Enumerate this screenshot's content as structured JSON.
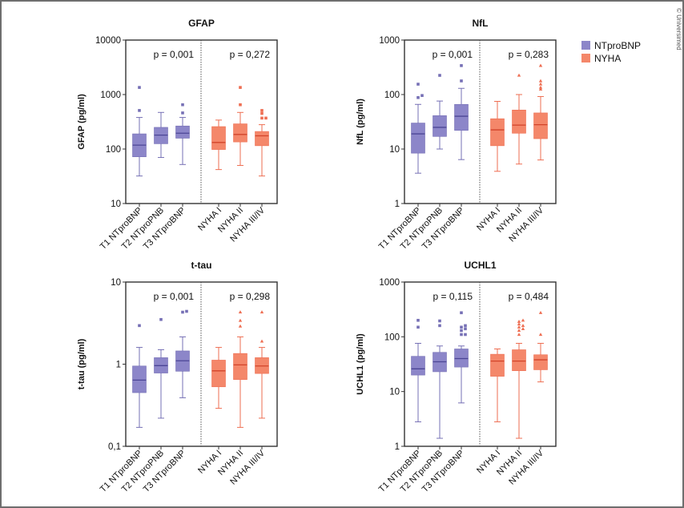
{
  "legend": {
    "items": [
      {
        "label": "NTproBNP",
        "color": "#8c86c9"
      },
      {
        "label": "NYHA",
        "color": "#f4876a"
      }
    ]
  },
  "copyright": "© Universimed",
  "colors": {
    "ntprobnp_fill": "#8c86c9",
    "ntprobnp_line": "#7670b5",
    "ntprobnp_median": "#4c4696",
    "nyha_fill": "#f4876a",
    "nyha_line": "#ee6e52",
    "nyha_median": "#d2442a",
    "axis": "#333333",
    "divider": "#555555"
  },
  "chart_data": [
    {
      "type": "box",
      "title": "GFAP",
      "ylabel": "GFAP (pg/ml)",
      "yscale": "log",
      "ylim": [
        10,
        10000
      ],
      "yticks": [
        10,
        100,
        1000,
        10000
      ],
      "ytick_labels": [
        "10",
        "100",
        "1000",
        "10000"
      ],
      "categories": [
        "T1 NTproBNP",
        "T2 NTproPNB",
        "T3 NTproBNP",
        "NYHA I",
        "NYHA II",
        "NYHA III/IV"
      ],
      "groups": [
        "NTproBNP",
        "NTproBNP",
        "NTproBNP",
        "NYHA",
        "NYHA",
        "NYHA"
      ],
      "pvalues": [
        "p = 0,001",
        "p = 0,272"
      ],
      "boxes": [
        {
          "min": 32,
          "q1": 72,
          "median": 118,
          "q3": 190,
          "max": 380,
          "outliers": [
            510,
            1350
          ],
          "marker": "square"
        },
        {
          "min": 70,
          "q1": 125,
          "median": 180,
          "q3": 250,
          "max": 470,
          "outliers": [],
          "marker": "square"
        },
        {
          "min": 52,
          "q1": 158,
          "median": 195,
          "q3": 265,
          "max": 380,
          "outliers": [
            460,
            650
          ],
          "marker": "square"
        },
        {
          "min": 42,
          "q1": 98,
          "median": 132,
          "q3": 258,
          "max": 340,
          "outliers": [],
          "marker": "square"
        },
        {
          "min": 50,
          "q1": 135,
          "median": 185,
          "q3": 290,
          "max": 470,
          "outliers": [
            650,
            1350
          ],
          "marker": "square"
        },
        {
          "min": 32,
          "q1": 115,
          "median": 175,
          "q3": 210,
          "max": 280,
          "outliers": [
            370,
            370,
            450,
            510
          ],
          "marker": "square"
        }
      ]
    },
    {
      "type": "box",
      "title": "NfL",
      "ylabel": "NfL (pg/ml)",
      "yscale": "log",
      "ylim": [
        1,
        1000
      ],
      "yticks": [
        1,
        10,
        100,
        1000
      ],
      "ytick_labels": [
        "1",
        "10",
        "100",
        "1000"
      ],
      "categories": [
        "T1 NTproBNP",
        "T2 NTproPNB",
        "T3 NTproBNP",
        "NYHA I",
        "NYHA II",
        "NYHA III/IV"
      ],
      "groups": [
        "NTproBNP",
        "NTproBNP",
        "NTproBNP",
        "NYHA",
        "NYHA",
        "NYHA"
      ],
      "pvalues": [
        "p = 0,001",
        "p = 0,283"
      ],
      "boxes": [
        {
          "min": 3.6,
          "q1": 8.4,
          "median": 19,
          "q3": 30,
          "max": 66,
          "outliers": [
            88,
            96,
            155
          ],
          "marker": "square"
        },
        {
          "min": 10,
          "q1": 17,
          "median": 25,
          "q3": 41,
          "max": 76,
          "outliers": [
            225
          ],
          "marker": "square"
        },
        {
          "min": 6.4,
          "q1": 22,
          "median": 40,
          "q3": 66,
          "max": 130,
          "outliers": [
            178,
            340
          ],
          "marker": "square"
        },
        {
          "min": 3.9,
          "q1": 11.5,
          "median": 22.5,
          "q3": 36,
          "max": 75,
          "outliers": [],
          "marker": "triangle"
        },
        {
          "min": 5.3,
          "q1": 19.5,
          "median": 27.5,
          "q3": 52,
          "max": 100,
          "outliers": [
            225
          ],
          "marker": "triangle"
        },
        {
          "min": 6.3,
          "q1": 15.5,
          "median": 28,
          "q3": 46,
          "max": 92,
          "outliers": [
            125,
            135,
            155,
            178,
            340
          ],
          "marker": "triangle"
        }
      ]
    },
    {
      "type": "box",
      "title": "t-tau",
      "ylabel": "t-tau (pg/ml)",
      "yscale": "log",
      "ylim": [
        0.1,
        10
      ],
      "yticks": [
        0.1,
        1,
        10
      ],
      "ytick_labels": [
        "0,1",
        "1",
        "10"
      ],
      "categories": [
        "T1 NTproBNP",
        "T2 NTproPNB",
        "T3 NTproBNP",
        "NYHA I",
        "NYHA II",
        "NYHA III/IV"
      ],
      "groups": [
        "NTproBNP",
        "NTproBNP",
        "NTproBNP",
        "NYHA",
        "NYHA",
        "NYHA"
      ],
      "pvalues": [
        "p = 0,001",
        "p = 0,298"
      ],
      "boxes": [
        {
          "min": 0.17,
          "q1": 0.45,
          "median": 0.64,
          "q3": 0.95,
          "max": 1.6,
          "outliers": [
            2.95
          ],
          "marker": "square"
        },
        {
          "min": 0.22,
          "q1": 0.78,
          "median": 0.96,
          "q3": 1.2,
          "max": 1.5,
          "outliers": [
            3.5
          ],
          "marker": "square"
        },
        {
          "min": 0.39,
          "q1": 0.82,
          "median": 1.1,
          "q3": 1.45,
          "max": 2.15,
          "outliers": [
            4.3,
            4.4
          ],
          "marker": "square"
        },
        {
          "min": 0.29,
          "q1": 0.53,
          "median": 0.83,
          "q3": 1.12,
          "max": 1.6,
          "outliers": [],
          "marker": "triangle"
        },
        {
          "min": 0.17,
          "q1": 0.65,
          "median": 0.98,
          "q3": 1.35,
          "max": 2.15,
          "outliers": [
            2.9,
            3.4,
            4.3
          ],
          "marker": "triangle"
        },
        {
          "min": 0.22,
          "q1": 0.77,
          "median": 0.95,
          "q3": 1.2,
          "max": 1.6,
          "outliers": [
            1.9,
            4.3
          ],
          "marker": "triangle"
        }
      ]
    },
    {
      "type": "box",
      "title": "UCHL1",
      "ylabel": "UCHL1 (pg/ml)",
      "yscale": "log",
      "ylim": [
        1,
        1000
      ],
      "yticks": [
        1,
        10,
        100,
        1000
      ],
      "ytick_labels": [
        "1",
        "10",
        "100",
        "1000"
      ],
      "categories": [
        "T1 NTproBNP",
        "T2 NTproPNB",
        "T3 NTproBNP",
        "NYHA I",
        "NYHA II",
        "NYHA III/IV"
      ],
      "groups": [
        "NTproBNP",
        "NTproBNP",
        "NTproBNP",
        "NYHA",
        "NYHA",
        "NYHA"
      ],
      "pvalues": [
        "p = 0,115",
        "p = 0,484"
      ],
      "boxes": [
        {
          "min": 2.8,
          "q1": 20,
          "median": 26,
          "q3": 44,
          "max": 76,
          "outliers": [
            150,
            200
          ],
          "marker": "square"
        },
        {
          "min": 1.4,
          "q1": 23,
          "median": 35,
          "q3": 52,
          "max": 68,
          "outliers": [
            160,
            195
          ],
          "marker": "square"
        },
        {
          "min": 6.2,
          "q1": 28,
          "median": 40,
          "q3": 60,
          "max": 68,
          "outliers": [
            110,
            110,
            130,
            140,
            150,
            160,
            275
          ],
          "marker": "square"
        },
        {
          "min": 2.8,
          "q1": 19,
          "median": 36,
          "q3": 48,
          "max": 60,
          "outliers": [],
          "marker": "triangle"
        },
        {
          "min": 1.4,
          "q1": 24,
          "median": 36,
          "q3": 58,
          "max": 76,
          "outliers": [
            110,
            130,
            140,
            150,
            160,
            170,
            190,
            200
          ],
          "marker": "triangle"
        },
        {
          "min": 15,
          "q1": 25,
          "median": 38,
          "q3": 47,
          "max": 76,
          "outliers": [
            110,
            275
          ],
          "marker": "triangle"
        }
      ]
    }
  ]
}
